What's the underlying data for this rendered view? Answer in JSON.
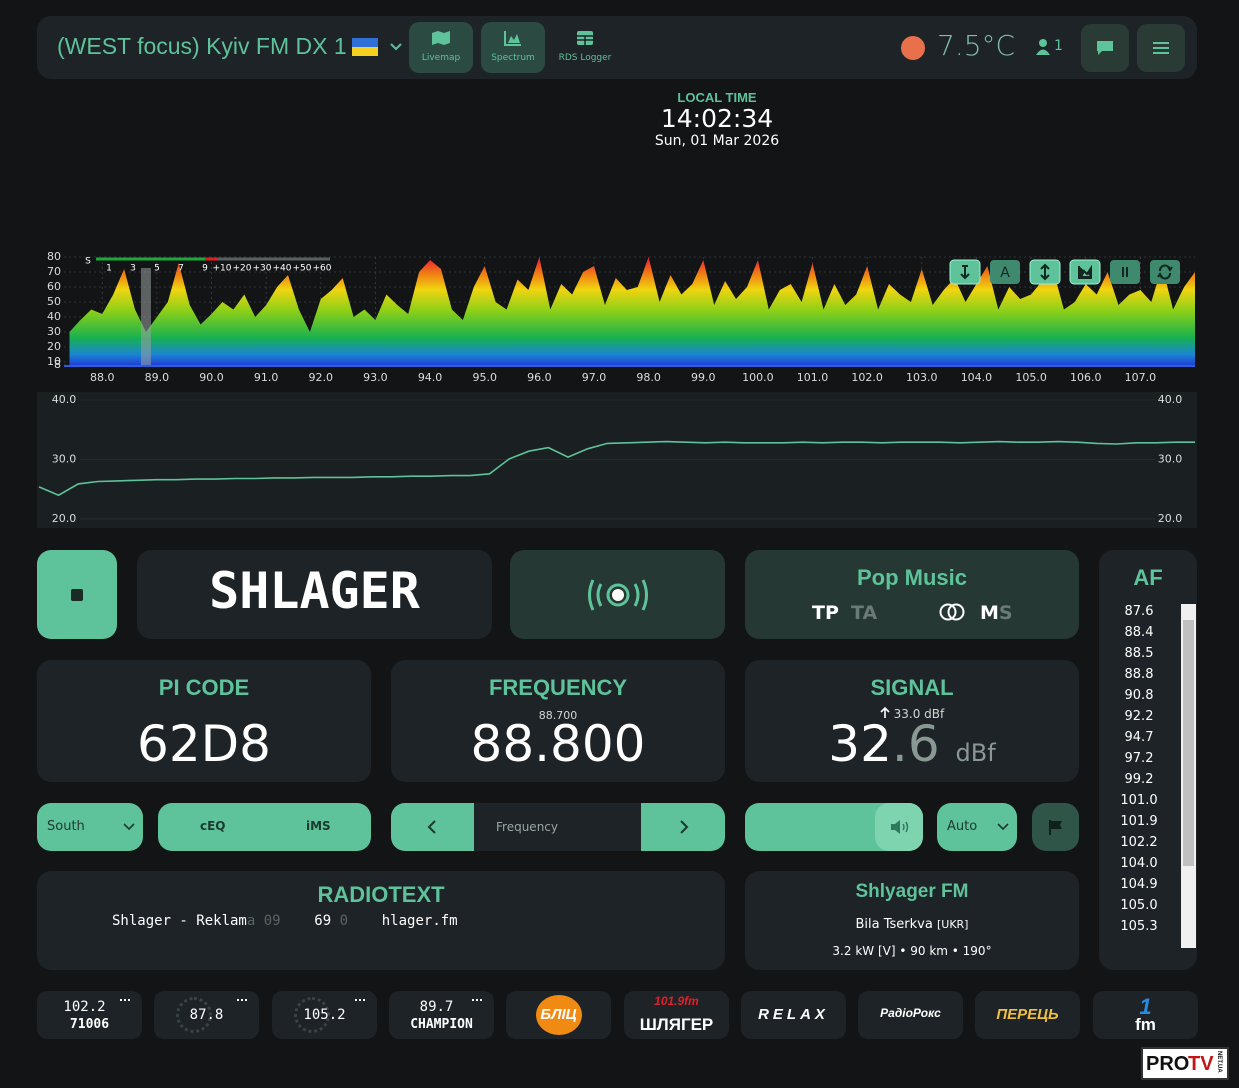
{
  "header": {
    "title": "(WEST focus) Kyiv FM DX 1",
    "nav": [
      "Livemap",
      "Spectrum",
      "RDS Logger"
    ],
    "temperature": "7.5°C",
    "users": "1"
  },
  "clock": {
    "label": "LOCAL TIME",
    "time": "14:02:34",
    "date": "Sun, 01 Mar 2026"
  },
  "chart_data": [
    {
      "type": "area",
      "x": [
        87.4,
        87.6,
        87.8,
        88.0,
        88.2,
        88.4,
        88.6,
        88.8,
        89.0,
        89.2,
        89.4,
        89.6,
        89.8,
        90.0,
        90.2,
        90.4,
        90.6,
        90.8,
        91.0,
        91.2,
        91.4,
        91.6,
        91.8,
        92.0,
        92.2,
        92.4,
        92.6,
        92.8,
        93.0,
        93.2,
        93.4,
        93.6,
        93.8,
        94.0,
        94.2,
        94.4,
        94.6,
        94.8,
        95.0,
        95.2,
        95.4,
        95.6,
        95.8,
        96.0,
        96.2,
        96.4,
        96.6,
        96.8,
        97.0,
        97.2,
        97.4,
        97.6,
        97.8,
        98.0,
        98.2,
        98.4,
        98.6,
        98.8,
        99.0,
        99.2,
        99.4,
        99.6,
        99.8,
        100.0,
        100.2,
        100.4,
        100.6,
        100.8,
        101.0,
        101.2,
        101.4,
        101.6,
        101.8,
        102.0,
        102.2,
        102.4,
        102.6,
        102.8,
        103.0,
        103.2,
        103.4,
        103.6,
        103.8,
        104.0,
        104.2,
        104.4,
        104.6,
        104.8,
        105.0,
        105.2,
        105.4,
        105.6,
        105.8,
        106.0,
        106.2,
        106.4,
        106.6,
        106.8,
        107.0,
        107.2,
        107.4,
        107.6,
        107.8,
        108.0
      ],
      "values": [
        30,
        38,
        45,
        42,
        55,
        72,
        45,
        30,
        40,
        50,
        76,
        48,
        35,
        42,
        50,
        45,
        55,
        40,
        48,
        60,
        68,
        45,
        30,
        52,
        58,
        66,
        40,
        45,
        38,
        55,
        48,
        42,
        70,
        78,
        72,
        45,
        38,
        60,
        74,
        50,
        45,
        65,
        58,
        80,
        45,
        62,
        55,
        70,
        74,
        48,
        66,
        58,
        60,
        80,
        50,
        68,
        55,
        62,
        78,
        48,
        64,
        52,
        60,
        78,
        45,
        58,
        62,
        50,
        76,
        45,
        62,
        48,
        55,
        74,
        45,
        62,
        55,
        50,
        72,
        48,
        58,
        66,
        50,
        62,
        74,
        45,
        60,
        52,
        55,
        64,
        72,
        45,
        50,
        62,
        55,
        70,
        48,
        55,
        58,
        50,
        74,
        45,
        60,
        70
      ],
      "xlim": [
        87.3,
        108.0
      ],
      "ylim": [
        8,
        80
      ],
      "xticks": [
        {
          "value": 88,
          "label": "88.0"
        },
        {
          "value": 89,
          "label": "89.0"
        },
        {
          "value": 90,
          "label": "90.0"
        },
        {
          "value": 91,
          "label": "91.0"
        },
        {
          "value": 92,
          "label": "92.0"
        },
        {
          "value": 93,
          "label": "93.0"
        },
        {
          "value": 94,
          "label": "94.0"
        },
        {
          "value": 95,
          "label": "95.0"
        },
        {
          "value": 96,
          "label": "96.0"
        },
        {
          "value": 97,
          "label": "97.0"
        },
        {
          "value": 98,
          "label": "98.0"
        },
        {
          "value": 99,
          "label": "99.0"
        },
        {
          "value": 100,
          "label": "100.0"
        },
        {
          "value": 101,
          "label": "101.0"
        },
        {
          "value": 102,
          "label": "102.0"
        },
        {
          "value": 103,
          "label": "103.0"
        },
        {
          "value": 104,
          "label": "104.0"
        },
        {
          "value": 105,
          "label": "105.0"
        },
        {
          "value": 106,
          "label": "106.0"
        },
        {
          "value": 107,
          "label": "107.0"
        }
      ],
      "yticks": [
        8,
        10,
        20,
        30,
        40,
        50,
        60,
        70,
        80
      ],
      "grid": true,
      "marker": 88.8,
      "s_meter": [
        "S",
        "1",
        "3",
        "5",
        "7",
        "9",
        "+10",
        "+20",
        "+30",
        "+40",
        "+50",
        "+60"
      ],
      "tool_label": "A"
    },
    {
      "type": "line",
      "color": "#5ec29a",
      "values": [
        25.4,
        24.0,
        25.9,
        26.3,
        26.4,
        26.5,
        26.6,
        26.6,
        26.7,
        26.7,
        26.8,
        26.8,
        26.9,
        26.9,
        27.0,
        27.0,
        27.0,
        27.1,
        27.1,
        27.2,
        27.2,
        27.3,
        27.3,
        27.6,
        30.1,
        31.4,
        32.0,
        30.4,
        31.8,
        32.7,
        32.8,
        32.9,
        33.0,
        32.9,
        32.8,
        32.9,
        32.8,
        32.8,
        32.8,
        32.9,
        32.8,
        32.9,
        32.9,
        32.8,
        32.9,
        32.9,
        32.9,
        32.8,
        32.9,
        33.0,
        32.9,
        32.9,
        33.0,
        32.9,
        32.7,
        32.6,
        32.8,
        32.8,
        32.9,
        32.9
      ],
      "ylim": [
        20,
        40
      ],
      "yticks": [
        {
          "value": 20,
          "label": "20.0"
        },
        {
          "value": 30,
          "label": "30.0"
        },
        {
          "value": 40,
          "label": "40.0"
        }
      ],
      "grid": true
    }
  ],
  "ps": "SHLAGER",
  "pty": {
    "name": "Pop Music",
    "tp": "TP",
    "ta": "TA",
    "m": "M",
    "s": "S"
  },
  "af": {
    "title": "AF",
    "list": [
      "87.6",
      "88.4",
      "88.5",
      "88.8",
      "90.8",
      "92.2",
      "94.7",
      "97.2",
      "99.2",
      "101.0",
      "101.9",
      "102.2",
      "104.0",
      "104.9",
      "105.0",
      "105.3"
    ]
  },
  "pi": {
    "title": "PI CODE",
    "value": "62D8"
  },
  "frequency": {
    "title": "FREQUENCY",
    "previous": "88.700",
    "value": "88.800"
  },
  "signal": {
    "title": "SIGNAL",
    "peak": "33.0 dBf",
    "whole": "32",
    "decimal": ".6",
    "unit": "dBf"
  },
  "controls": {
    "antenna": "South",
    "ceq": "cEQ",
    "ims": "iMS",
    "frequency_placeholder": "Frequency",
    "bandwidth": "Auto"
  },
  "radiotext": {
    "title": "RADIOTEXT",
    "segments": [
      {
        "text": "Shlager - Reklam"
      },
      {
        "text": "a 09",
        "dim": true
      },
      {
        "text": "    69 "
      },
      {
        "text": "0",
        "dim": true
      },
      {
        "text": "    hlager.fm"
      }
    ]
  },
  "station": {
    "name": "Shlyager FM",
    "city": "Bila Tserkva",
    "country": "[UKR]",
    "details": "3.2 kW [V] • 90 km • 190°"
  },
  "presets": [
    {
      "freq": "102.2",
      "sub": "71006"
    },
    {
      "freq": "87.8"
    },
    {
      "freq": "105.2"
    },
    {
      "freq": "89.7",
      "sub": "CHAMPION"
    },
    {
      "logo": "БЛІЦ",
      "color": "#f08a12"
    },
    {
      "logo": "101.9fm",
      "sub": "ШЛЯГЕР",
      "color": "#e0202a"
    },
    {
      "logo": "RELAX",
      "color": "#ffffff"
    },
    {
      "logo": "РадіоРокс",
      "color": "#ffffff"
    },
    {
      "logo": "ПЕРЕЦЬ",
      "color": "#f0c040"
    },
    {
      "logo": "1",
      "sub": "fm",
      "color": "#2a8ae0"
    }
  ],
  "watermark": {
    "brand": "PRO",
    "accent": "TV",
    "domain": "NET.UA"
  }
}
